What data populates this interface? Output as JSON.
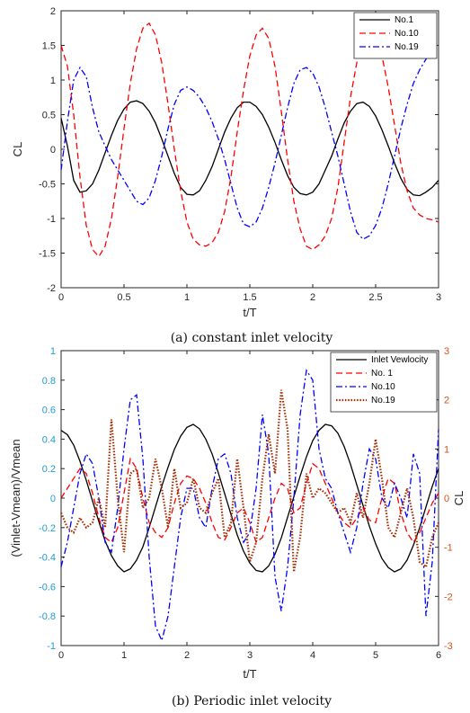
{
  "chart_data": [
    {
      "type": "line",
      "caption": "(a) constant inlet velocity",
      "xlabel": "t/T",
      "ylabel": "CL",
      "xlim": [
        0,
        3
      ],
      "ylim": [
        -2,
        2
      ],
      "xticks": [
        "0",
        "0.5",
        "1",
        "1.5",
        "2",
        "2.5",
        "3"
      ],
      "yticks": [
        "-2",
        "-1.5",
        "-1",
        "-0.5",
        "0",
        "0.5",
        "1",
        "1.5",
        "2"
      ],
      "grid": false,
      "legend_position": "top-right",
      "series": [
        {
          "name": "No.1",
          "color": "#000000",
          "style": "solid",
          "x": [
            0,
            0.05,
            0.1,
            0.15,
            0.2,
            0.25,
            0.3,
            0.35,
            0.4,
            0.45,
            0.5,
            0.55,
            0.6,
            0.65,
            0.7,
            0.75,
            0.8,
            0.85,
            0.9,
            0.95,
            1.0,
            1.05,
            1.1,
            1.15,
            1.2,
            1.25,
            1.3,
            1.35,
            1.4,
            1.45,
            1.5,
            1.55,
            1.6,
            1.65,
            1.7,
            1.75,
            1.8,
            1.85,
            1.9,
            1.95,
            2.0,
            2.05,
            2.1,
            2.15,
            2.2,
            2.25,
            2.3,
            2.35,
            2.4,
            2.45,
            2.5,
            2.55,
            2.6,
            2.65,
            2.7,
            2.75,
            2.8,
            2.85,
            2.9,
            2.95,
            3.0
          ],
          "y": [
            0.45,
            0.05,
            -0.45,
            -0.62,
            -0.6,
            -0.5,
            -0.3,
            -0.05,
            0.2,
            0.42,
            0.58,
            0.68,
            0.7,
            0.66,
            0.55,
            0.38,
            0.15,
            -0.1,
            -0.35,
            -0.55,
            -0.65,
            -0.66,
            -0.6,
            -0.45,
            -0.25,
            0.0,
            0.25,
            0.45,
            0.6,
            0.68,
            0.68,
            0.62,
            0.5,
            0.32,
            0.1,
            -0.15,
            -0.38,
            -0.55,
            -0.64,
            -0.66,
            -0.62,
            -0.5,
            -0.3,
            -0.1,
            0.15,
            0.38,
            0.55,
            0.66,
            0.68,
            0.62,
            0.48,
            0.28,
            0.05,
            -0.2,
            -0.42,
            -0.58,
            -0.66,
            -0.67,
            -0.62,
            -0.55,
            -0.45
          ]
        },
        {
          "name": "No.10",
          "color": "#ff0000",
          "style": "dashed",
          "x": [
            0,
            0.05,
            0.1,
            0.15,
            0.2,
            0.25,
            0.3,
            0.35,
            0.4,
            0.45,
            0.5,
            0.55,
            0.6,
            0.65,
            0.7,
            0.75,
            0.8,
            0.85,
            0.9,
            0.95,
            1.0,
            1.05,
            1.1,
            1.15,
            1.2,
            1.25,
            1.3,
            1.35,
            1.4,
            1.45,
            1.5,
            1.55,
            1.6,
            1.65,
            1.7,
            1.75,
            1.8,
            1.85,
            1.9,
            1.95,
            2.0,
            2.05,
            2.1,
            2.15,
            2.2,
            2.25,
            2.3,
            2.35,
            2.4,
            2.45,
            2.5,
            2.55,
            2.6,
            2.65,
            2.7,
            2.75,
            2.8,
            2.85,
            2.9,
            2.95,
            3.0
          ],
          "y": [
            1.5,
            1.2,
            0.5,
            -0.4,
            -1.1,
            -1.45,
            -1.55,
            -1.4,
            -1.0,
            -0.4,
            0.3,
            0.95,
            1.45,
            1.75,
            1.82,
            1.65,
            1.25,
            0.65,
            0.0,
            -0.6,
            -1.05,
            -1.3,
            -1.38,
            -1.4,
            -1.35,
            -1.2,
            -0.9,
            -0.4,
            0.25,
            0.85,
            1.35,
            1.65,
            1.75,
            1.6,
            1.2,
            0.55,
            -0.15,
            -0.75,
            -1.15,
            -1.4,
            -1.45,
            -1.38,
            -1.25,
            -1.0,
            -0.55,
            0.1,
            0.75,
            1.25,
            1.55,
            1.68,
            1.6,
            1.35,
            0.9,
            0.35,
            -0.2,
            -0.6,
            -0.85,
            -0.95,
            -1.0,
            -1.02,
            -1.05
          ]
        },
        {
          "name": "No.19",
          "color": "#0000ff",
          "style": "dashdot",
          "x": [
            0,
            0.05,
            0.1,
            0.15,
            0.2,
            0.25,
            0.3,
            0.35,
            0.4,
            0.45,
            0.5,
            0.55,
            0.6,
            0.65,
            0.7,
            0.75,
            0.8,
            0.85,
            0.9,
            0.95,
            1.0,
            1.05,
            1.1,
            1.15,
            1.2,
            1.25,
            1.3,
            1.35,
            1.4,
            1.45,
            1.5,
            1.55,
            1.6,
            1.65,
            1.7,
            1.75,
            1.8,
            1.85,
            1.9,
            1.95,
            2.0,
            2.05,
            2.1,
            2.15,
            2.2,
            2.25,
            2.3,
            2.35,
            2.4,
            2.45,
            2.5,
            2.55,
            2.6,
            2.65,
            2.7,
            2.75,
            2.8,
            2.85,
            2.9,
            2.95,
            3.0
          ],
          "y": [
            -0.3,
            0.4,
            1.0,
            1.18,
            1.05,
            0.6,
            0.25,
            0.05,
            -0.15,
            -0.3,
            -0.45,
            -0.6,
            -0.75,
            -0.8,
            -0.7,
            -0.45,
            -0.1,
            0.3,
            0.65,
            0.85,
            0.9,
            0.85,
            0.75,
            0.6,
            0.4,
            0.15,
            -0.15,
            -0.5,
            -0.85,
            -1.08,
            -1.12,
            -1.05,
            -0.85,
            -0.55,
            -0.2,
            0.2,
            0.6,
            0.95,
            1.15,
            1.18,
            1.1,
            0.9,
            0.6,
            0.25,
            -0.1,
            -0.5,
            -0.9,
            -1.2,
            -1.3,
            -1.25,
            -1.1,
            -0.85,
            -0.5,
            -0.1,
            0.3,
            0.65,
            0.95,
            1.15,
            1.3,
            1.42,
            1.5
          ]
        }
      ]
    },
    {
      "type": "line",
      "caption": "(b) Periodic inlet velocity",
      "xlabel": "t/T",
      "ylabel": "(Vinlet-Vmean)/Vmean",
      "ylabel_right": "CL",
      "xlim": [
        0,
        6
      ],
      "ylim": [
        -1,
        1
      ],
      "ylim_right": [
        -3,
        3
      ],
      "xticks": [
        "0",
        "1",
        "2",
        "3",
        "4",
        "5",
        "6"
      ],
      "yticks": [
        "-1",
        "-0.8",
        "-0.6",
        "-0.4",
        "-0.2",
        "0",
        "0.2",
        "0.4",
        "0.6",
        "0.8",
        "1"
      ],
      "yticks_right": [
        "-3",
        "-2",
        "-1",
        "0",
        "1",
        "2",
        "3"
      ],
      "grid": false,
      "legend_position": "top-right",
      "colors": {
        "left_axis": "#1e9bd7",
        "right_axis": "#d95319"
      },
      "series": [
        {
          "name": "Inlet Vewlocity",
          "axis": "left",
          "color": "#000000",
          "style": "solid",
          "x": [
            0,
            0.1,
            0.2,
            0.3,
            0.4,
            0.5,
            0.6,
            0.7,
            0.8,
            0.9,
            1.0,
            1.1,
            1.2,
            1.3,
            1.4,
            1.5,
            1.6,
            1.7,
            1.8,
            1.9,
            2.0,
            2.1,
            2.2,
            2.3,
            2.4,
            2.5,
            2.6,
            2.7,
            2.8,
            2.9,
            3.0,
            3.1,
            3.2,
            3.3,
            3.4,
            3.5,
            3.6,
            3.7,
            3.8,
            3.9,
            4.0,
            4.1,
            4.2,
            4.3,
            4.4,
            4.5,
            4.6,
            4.7,
            4.8,
            4.9,
            5.0,
            5.1,
            5.2,
            5.3,
            5.4,
            5.5,
            5.6,
            5.7,
            5.8,
            5.9,
            6.0
          ],
          "y": [
            0.46,
            0.43,
            0.36,
            0.25,
            0.12,
            -0.02,
            -0.16,
            -0.29,
            -0.39,
            -0.46,
            -0.5,
            -0.48,
            -0.42,
            -0.33,
            -0.2,
            -0.06,
            0.08,
            0.21,
            0.33,
            0.42,
            0.48,
            0.5,
            0.47,
            0.4,
            0.3,
            0.17,
            0.03,
            -0.11,
            -0.25,
            -0.36,
            -0.44,
            -0.49,
            -0.5,
            -0.46,
            -0.38,
            -0.27,
            -0.13,
            0.01,
            0.15,
            0.28,
            0.39,
            0.46,
            0.5,
            0.49,
            0.44,
            0.35,
            0.23,
            0.09,
            -0.05,
            -0.19,
            -0.31,
            -0.41,
            -0.47,
            -0.5,
            -0.48,
            -0.42,
            -0.32,
            -0.2,
            -0.06,
            0.08,
            0.2
          ]
        },
        {
          "name": "No. 1",
          "axis": "right",
          "color": "#ff0000",
          "style": "dashed",
          "x": [
            0,
            0.1,
            0.2,
            0.3,
            0.4,
            0.5,
            0.6,
            0.7,
            0.8,
            0.9,
            1.0,
            1.1,
            1.2,
            1.3,
            1.4,
            1.5,
            1.6,
            1.7,
            1.8,
            1.9,
            2.0,
            2.1,
            2.2,
            2.3,
            2.4,
            2.5,
            2.6,
            2.7,
            2.8,
            2.9,
            3.0,
            3.1,
            3.2,
            3.3,
            3.4,
            3.5,
            3.6,
            3.7,
            3.8,
            3.9,
            4.0,
            4.1,
            4.2,
            4.3,
            4.4,
            4.5,
            4.6,
            4.7,
            4.8,
            4.9,
            5.0,
            5.1,
            5.2,
            5.3,
            5.4,
            5.5,
            5.6,
            5.7,
            5.8,
            5.9,
            6.0
          ],
          "y": [
            0.0,
            0.2,
            0.4,
            0.6,
            0.5,
            0.1,
            -0.4,
            -0.8,
            -0.9,
            -0.6,
            0.1,
            0.8,
            0.6,
            0.0,
            -0.5,
            -0.7,
            -0.8,
            -0.6,
            -0.1,
            0.3,
            0.45,
            0.4,
            0.2,
            -0.1,
            -0.5,
            -0.8,
            -0.85,
            -0.6,
            -0.3,
            -0.2,
            -0.5,
            -0.9,
            -0.8,
            -0.4,
            0.0,
            0.3,
            0.2,
            -0.3,
            -0.2,
            0.3,
            0.7,
            0.6,
            0.3,
            0.0,
            -0.3,
            -0.5,
            -0.6,
            -0.4,
            -0.2,
            -0.45,
            -0.5,
            0.0,
            0.4,
            0.3,
            -0.3,
            -0.7,
            -0.9,
            -0.7,
            -0.4,
            -0.1,
            0.1
          ]
        },
        {
          "name": "No.10",
          "axis": "right",
          "color": "#0000ff",
          "style": "dashdot",
          "x": [
            0,
            0.1,
            0.2,
            0.3,
            0.4,
            0.5,
            0.6,
            0.7,
            0.8,
            0.9,
            1.0,
            1.1,
            1.2,
            1.3,
            1.4,
            1.5,
            1.6,
            1.7,
            1.8,
            1.9,
            2.0,
            2.1,
            2.2,
            2.3,
            2.4,
            2.5,
            2.6,
            2.7,
            2.8,
            2.9,
            3.0,
            3.1,
            3.2,
            3.3,
            3.4,
            3.5,
            3.6,
            3.7,
            3.8,
            3.9,
            4.0,
            4.1,
            4.2,
            4.3,
            4.4,
            4.5,
            4.6,
            4.7,
            4.8,
            4.9,
            5.0,
            5.1,
            5.2,
            5.3,
            5.4,
            5.5,
            5.6,
            5.7,
            5.8,
            5.9,
            6.0
          ],
          "y": [
            -1.4,
            -0.9,
            -0.2,
            0.5,
            0.9,
            0.7,
            0.0,
            -0.9,
            -1.1,
            -0.2,
            1.0,
            2.0,
            2.1,
            0.8,
            -1.2,
            -2.6,
            -2.9,
            -2.4,
            -1.4,
            -0.4,
            0.2,
            0.2,
            -0.4,
            -0.6,
            0.2,
            0.8,
            0.9,
            0.5,
            -0.4,
            -0.9,
            -0.7,
            0.2,
            1.7,
            0.9,
            -1.6,
            -2.3,
            -1.4,
            0.0,
            1.7,
            2.6,
            2.4,
            1.0,
            0.4,
            0.2,
            -0.3,
            -0.7,
            -1.1,
            -0.6,
            0.3,
            1.0,
            0.8,
            0.0,
            -0.2,
            0.3,
            0.0,
            -0.4,
            0.9,
            0.5,
            -2.4,
            -1.3,
            1.4
          ]
        },
        {
          "name": "No.19",
          "axis": "right",
          "color": "#a52a00",
          "style": "dotted",
          "x": [
            0,
            0.1,
            0.2,
            0.3,
            0.4,
            0.5,
            0.6,
            0.7,
            0.8,
            0.9,
            1.0,
            1.1,
            1.2,
            1.3,
            1.4,
            1.5,
            1.6,
            1.7,
            1.8,
            1.9,
            2.0,
            2.1,
            2.2,
            2.3,
            2.4,
            2.5,
            2.6,
            2.7,
            2.8,
            2.9,
            3.0,
            3.1,
            3.2,
            3.3,
            3.4,
            3.5,
            3.6,
            3.7,
            3.8,
            3.9,
            4.0,
            4.1,
            4.2,
            4.3,
            4.4,
            4.5,
            4.6,
            4.7,
            4.8,
            4.9,
            5.0,
            5.1,
            5.2,
            5.3,
            5.4,
            5.5,
            5.6,
            5.7,
            5.8,
            5.9,
            6.0
          ],
          "y": [
            -0.3,
            -0.6,
            -0.7,
            -0.4,
            -0.6,
            -0.5,
            0.0,
            -0.6,
            1.6,
            0.0,
            -1.1,
            0.5,
            0.6,
            -0.2,
            0.0,
            0.8,
            0.2,
            -0.6,
            0.6,
            -0.2,
            -0.1,
            0.4,
            -0.2,
            -0.3,
            0.1,
            0.4,
            -0.8,
            -0.5,
            0.8,
            -0.2,
            -1.3,
            -0.9,
            0.4,
            1.3,
            0.5,
            2.2,
            1.4,
            -1.5,
            -0.8,
            0.5,
            0.0,
            0.2,
            0.1,
            -0.1,
            -0.3,
            -0.2,
            -0.5,
            0.1,
            -0.4,
            0.3,
            1.2,
            0.4,
            -0.6,
            -0.8,
            -0.3,
            0.2,
            -0.4,
            -1.3,
            -1.4,
            -0.8,
            -0.5
          ]
        }
      ]
    }
  ]
}
